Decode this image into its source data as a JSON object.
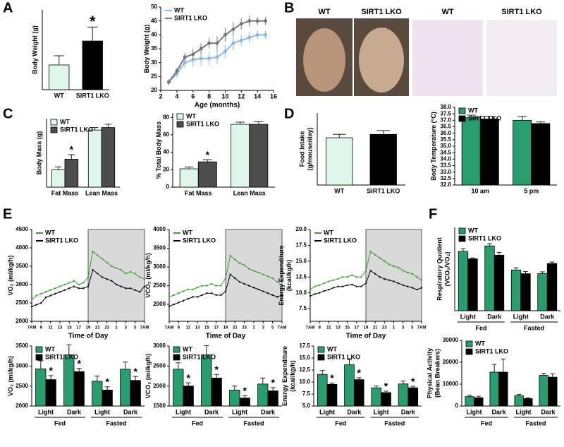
{
  "figure": {
    "panels": [
      "A",
      "B",
      "C",
      "D",
      "E",
      "F"
    ],
    "photo_labels": [
      "WT",
      "SIRT1 LKO",
      "WT",
      "SIRT1 LKO"
    ]
  },
  "chart_data": [
    {
      "type": "bar",
      "ylabel": "Body Weight (g)",
      "categories": [
        "WT",
        "SIRT1 LKO"
      ],
      "values": [
        31.2,
        37.2
      ],
      "errors": [
        2.3,
        3.5
      ],
      "colors": [
        "#dff7ea",
        "#000000"
      ],
      "annotations": [
        null,
        "*"
      ],
      "ylim": [
        25,
        45
      ]
    },
    {
      "type": "line",
      "ylabel": "Body Weight (g)",
      "xlabel": "Age (months)",
      "x": [
        3,
        4,
        5,
        6,
        7,
        8,
        9,
        10,
        11,
        12,
        13,
        14,
        15
      ],
      "series": [
        {
          "name": "WT",
          "color": "#8ab8e8",
          "values": [
            23,
            26,
            30,
            31,
            31.5,
            31.5,
            32,
            34,
            37,
            38,
            39,
            40,
            40
          ],
          "errors": [
            1,
            1.5,
            2,
            2.5,
            2.5,
            2.5,
            2.5,
            2.5,
            2.5,
            2,
            2,
            1.5,
            1.5
          ]
        },
        {
          "name": "SIRT1 LKO",
          "color": "#777777",
          "values": [
            23,
            27,
            32,
            33,
            35,
            37,
            37,
            40,
            42,
            44,
            45,
            45,
            45
          ],
          "errors": [
            1,
            1,
            1.5,
            2,
            2,
            2,
            2.5,
            2.5,
            2.5,
            2,
            2,
            1.5,
            1.5
          ]
        }
      ],
      "xlim": [
        2,
        16
      ],
      "xticks": [
        2,
        4,
        6,
        8,
        10,
        12,
        14,
        16
      ],
      "ylim": [
        20,
        50
      ],
      "yticks": [
        20,
        25,
        30,
        35,
        40,
        45,
        50
      ],
      "legend": "upper left"
    },
    {
      "type": "bar",
      "ylabel": "Body Mass (g)",
      "categories": [
        "Fat Mass",
        "Lean Mass"
      ],
      "series": [
        {
          "name": "WT",
          "color": "#dff7ea",
          "values": [
            6.8,
            22.5
          ],
          "errors": [
            1.2,
            1
          ]
        },
        {
          "name": "SIRT1 LKO",
          "color": "#4d4d4d",
          "values": [
            11,
            23.5
          ],
          "errors": [
            1.8,
            1.3
          ],
          "annotations": [
            "*",
            null
          ]
        }
      ],
      "ylim": [
        0,
        27
      ],
      "legend": "upper left"
    },
    {
      "type": "bar",
      "ylabel": "% Total Body Mass",
      "categories": [
        "Fat Mass",
        "Lean Mass"
      ],
      "series": [
        {
          "name": "WT",
          "color": "#dff7ea",
          "values": [
            21,
            72
          ],
          "errors": [
            2,
            2.5
          ]
        },
        {
          "name": "SIRT1 LKO",
          "color": "#4d4d4d",
          "values": [
            29,
            72
          ],
          "errors": [
            2.5,
            3
          ],
          "annotations": [
            "*",
            null
          ]
        }
      ],
      "ylim": [
        0,
        85
      ],
      "yticks": [
        0,
        20,
        40,
        60,
        80
      ],
      "legend": "upper left"
    },
    {
      "type": "bar",
      "ylabel": [
        "Food Intake",
        "(g/mouse/day)"
      ],
      "categories": [
        "WT",
        "SIRT1 LKO"
      ],
      "values": [
        2.1,
        2.25
      ],
      "errors": [
        0.15,
        0.17
      ],
      "colors": [
        "#dff7ea",
        "#000000"
      ],
      "ylim": [
        0,
        3.2
      ]
    },
    {
      "type": "bar",
      "ylabel": "Body Temperature (°C)",
      "categories": [
        "10 am",
        "5 pm"
      ],
      "series": [
        {
          "name": "WT",
          "color": "#2a9d6f",
          "values": [
            37.2,
            37.0
          ],
          "errors": [
            0.2,
            0.3
          ]
        },
        {
          "name": "SIRT1 LKO",
          "color": "#000000",
          "values": [
            37.1,
            36.75
          ],
          "errors": [
            0.2,
            0.12
          ]
        }
      ],
      "ylim": [
        32,
        38
      ],
      "yticks": [
        {
          "value": 32,
          "label": "32.0"
        },
        32.5,
        {
          "value": 33,
          "label": "33.0"
        },
        33.5,
        {
          "value": 34,
          "label": "34.0"
        },
        34.5,
        {
          "value": 35,
          "label": "35.0"
        },
        35.5,
        {
          "value": 36,
          "label": "36.0"
        },
        36.5,
        {
          "value": 37,
          "label": "37.0"
        },
        37.5,
        {
          "value": 38,
          "label": "38.0"
        }
      ],
      "legend": "upper left"
    },
    {
      "type": "line",
      "ylabel": "VO₂ (ml/kg/h)",
      "xlabel": "Time of Day",
      "x": [
        0,
        1,
        2,
        3,
        4,
        5,
        6,
        7,
        8,
        9,
        10,
        11,
        12,
        13,
        14,
        15,
        16,
        17,
        18,
        19,
        20,
        21,
        22,
        23,
        24
      ],
      "series": [
        {
          "name": "WT",
          "color": "#3d9e2e",
          "values": [
            2600,
            2700,
            2750,
            2800,
            2850,
            2900,
            2950,
            3000,
            3050,
            3100,
            3000,
            3050,
            3200,
            3900,
            3800,
            3700,
            3600,
            3500,
            3450,
            3400,
            3300,
            3350,
            3300,
            3200,
            3150
          ]
        },
        {
          "name": "SIRT1 LKO",
          "color": "#000000",
          "values": [
            2400,
            2450,
            2500,
            2650,
            2700,
            2750,
            2800,
            2850,
            2900,
            2950,
            2900,
            2900,
            2950,
            3400,
            3300,
            3200,
            3150,
            3100,
            3000,
            2950,
            2900,
            2900,
            2850,
            2800,
            2950
          ]
        }
      ],
      "xlim": [
        0,
        24
      ],
      "xticks": [
        {
          "value": 0,
          "label": "7AM"
        },
        {
          "value": 2,
          "label": "9"
        },
        {
          "value": 4,
          "label": "11"
        },
        {
          "value": 6,
          "label": "13"
        },
        {
          "value": 8,
          "label": "15"
        },
        {
          "value": 10,
          "label": "17"
        },
        {
          "value": 12,
          "label": "19"
        },
        {
          "value": 14,
          "label": "21"
        },
        {
          "value": 16,
          "label": "23"
        },
        {
          "value": 18,
          "label": "1"
        },
        {
          "value": 20,
          "label": "3"
        },
        {
          "value": 22,
          "label": "5"
        },
        {
          "value": 24,
          "label": "7AM"
        }
      ],
      "ylim": [
        2000,
        4500
      ],
      "yticks": [
        2000,
        2500,
        3000,
        3500,
        4000,
        4500
      ],
      "shade": [
        12,
        24
      ],
      "legend": "upper left"
    },
    {
      "type": "line",
      "ylabel": "VCO₂ (ml/kg/h)",
      "xlabel": "Time of Day",
      "x": [
        0,
        1,
        2,
        3,
        4,
        5,
        6,
        7,
        8,
        9,
        10,
        11,
        12,
        13,
        14,
        15,
        16,
        17,
        18,
        19,
        20,
        21,
        22,
        23,
        24
      ],
      "series": [
        {
          "name": "WT",
          "color": "#3d9e2e",
          "values": [
            2200,
            2250,
            2300,
            2350,
            2400,
            2400,
            2450,
            2500,
            2500,
            2550,
            2500,
            2500,
            2700,
            3300,
            3200,
            3100,
            3050,
            2950,
            2900,
            2850,
            2800,
            2750,
            2700,
            2600,
            2500
          ]
        },
        {
          "name": "SIRT1 LKO",
          "color": "#000000",
          "values": [
            1950,
            2000,
            2050,
            2100,
            2150,
            2200,
            2200,
            2250,
            2300,
            2300,
            2250,
            2250,
            2350,
            2800,
            2700,
            2600,
            2550,
            2500,
            2450,
            2400,
            2350,
            2300,
            2250,
            2200,
            2250
          ]
        }
      ],
      "xlim": [
        0,
        24
      ],
      "xticks": [
        {
          "value": 0,
          "label": "7AM"
        },
        {
          "value": 2,
          "label": "9"
        },
        {
          "value": 4,
          "label": "11"
        },
        {
          "value": 6,
          "label": "13"
        },
        {
          "value": 8,
          "label": "15"
        },
        {
          "value": 10,
          "label": "17"
        },
        {
          "value": 12,
          "label": "19"
        },
        {
          "value": 14,
          "label": "21"
        },
        {
          "value": 16,
          "label": "23"
        },
        {
          "value": 18,
          "label": "1"
        },
        {
          "value": 20,
          "label": "3"
        },
        {
          "value": 22,
          "label": "5"
        },
        {
          "value": 24,
          "label": "7AM"
        }
      ],
      "ylim": [
        1550,
        4000
      ],
      "yticks": [
        2000,
        2500,
        3000,
        3500,
        4000
      ],
      "shade": [
        12,
        24
      ],
      "legend": "upper left"
    },
    {
      "type": "line",
      "ylabel": [
        "Energy Expenditure",
        "(kcal/kg/h)"
      ],
      "xlabel": "Time of Day",
      "x": [
        0,
        1,
        2,
        3,
        4,
        5,
        6,
        7,
        8,
        9,
        10,
        11,
        12,
        13,
        14,
        15,
        16,
        17,
        18,
        19,
        20,
        21,
        22,
        23,
        24
      ],
      "series": [
        {
          "name": "WT",
          "color": "#3d9e2e",
          "values": [
            10.5,
            11,
            11.2,
            11.5,
            11.8,
            12,
            12.2,
            12.5,
            12.5,
            12.8,
            12.5,
            12.5,
            13.5,
            16.5,
            16,
            15.5,
            15,
            14.5,
            14.2,
            14,
            13.5,
            13.2,
            13,
            12.5,
            12
          ]
        },
        {
          "name": "SIRT1 LKO",
          "color": "#000000",
          "values": [
            9.5,
            9.8,
            10,
            10.3,
            10.5,
            10.8,
            11,
            11,
            11.2,
            11.3,
            11,
            11,
            11.5,
            13.5,
            13,
            12.5,
            12.2,
            12,
            11.8,
            11.5,
            11.2,
            11,
            10.8,
            10.5,
            10.8
          ]
        }
      ],
      "xlim": [
        0,
        24
      ],
      "xticks": [
        {
          "value": 0,
          "label": "7AM"
        },
        {
          "value": 2,
          "label": "9"
        },
        {
          "value": 4,
          "label": "11"
        },
        {
          "value": 6,
          "label": "13"
        },
        {
          "value": 8,
          "label": "15"
        },
        {
          "value": 10,
          "label": "17"
        },
        {
          "value": 12,
          "label": "19"
        },
        {
          "value": 14,
          "label": "21"
        },
        {
          "value": 16,
          "label": "23"
        },
        {
          "value": 18,
          "label": "1"
        },
        {
          "value": 20,
          "label": "3"
        },
        {
          "value": 22,
          "label": "5"
        },
        {
          "value": 24,
          "label": "7AM"
        }
      ],
      "ylim": [
        5.5,
        20
      ],
      "yticks": [
        7.5,
        {
          "value": 10,
          "label": "10.0"
        },
        12.5,
        {
          "value": 15,
          "label": "15.0"
        },
        17.5,
        {
          "value": 20,
          "label": "20.0"
        }
      ],
      "shade": [
        12,
        24
      ],
      "legend": "upper left"
    },
    {
      "type": "bar",
      "ylabel": "VO₂ (ml/kg/h)",
      "categories": [
        "Light",
        "Dark",
        "Light",
        "Dark"
      ],
      "groups": [
        "Fed",
        "Fasted"
      ],
      "series": [
        {
          "name": "WT",
          "color": "#2a9d6f",
          "values": [
            2930,
            3280,
            2620,
            2920
          ],
          "errors": [
            200,
            250,
            130,
            180
          ]
        },
        {
          "name": "SIRT1 LKO",
          "color": "#000000",
          "values": [
            2660,
            2860,
            2400,
            2640
          ],
          "errors": [
            100,
            80,
            80,
            100
          ],
          "annotations": [
            "*",
            "*",
            "*",
            "*"
          ]
        }
      ],
      "ylim": [
        2000,
        3500
      ],
      "yticks": [
        2000,
        2500,
        3000,
        3500
      ],
      "legend": "upper left"
    },
    {
      "type": "bar",
      "ylabel": "VCO₂ (ml/kg/h)",
      "categories": [
        "Light",
        "Dark",
        "Light",
        "Dark"
      ],
      "groups": [
        "Fed",
        "Fasted"
      ],
      "series": [
        {
          "name": "WT",
          "color": "#2a9d6f",
          "values": [
            2420,
            2780,
            1900,
            2050
          ],
          "errors": [
            160,
            230,
            100,
            150
          ]
        },
        {
          "name": "SIRT1 LKO",
          "color": "#000000",
          "values": [
            2000,
            2200,
            1700,
            1880
          ],
          "errors": [
            80,
            90,
            60,
            80
          ],
          "annotations": [
            "*",
            "*",
            "*",
            "*"
          ]
        }
      ],
      "ylim": [
        1500,
        3000
      ],
      "yticks": [
        1500,
        2000,
        2500,
        3000
      ],
      "legend": "upper left"
    },
    {
      "type": "bar",
      "ylabel": [
        "Energy Expenditure",
        "(kcal/kg/h)"
      ],
      "categories": [
        "Light",
        "Dark",
        "Light",
        "Dark"
      ],
      "groups": [
        "Fed",
        "Fasted"
      ],
      "series": [
        {
          "name": "WT",
          "color": "#2a9d6f",
          "values": [
            11.6,
            13.6,
            8.8,
            9.6
          ],
          "errors": [
            0.8,
            1.1,
            0.4,
            0.6
          ]
        },
        {
          "name": "SIRT1 LKO",
          "color": "#000000",
          "values": [
            9.5,
            10.5,
            7.8,
            8.8
          ],
          "errors": [
            0.3,
            0.4,
            0.3,
            0.3
          ],
          "annotations": [
            "*",
            "*",
            "*",
            "*"
          ]
        }
      ],
      "ylim": [
        5,
        17.5
      ],
      "yticks": [
        {
          "value": 5,
          "label": "5.0"
        },
        7.5,
        {
          "value": 10,
          "label": "10.0"
        },
        12.5,
        {
          "value": 15,
          "label": "15.0"
        },
        17.5
      ],
      "legend": "upper left"
    },
    {
      "type": "bar",
      "ylabel": [
        "Respiratory Quotient",
        "(VCO₂/VO₂)"
      ],
      "categories": [
        "Light",
        "Dark",
        "Light",
        "Dark"
      ],
      "groups": [
        "Fed",
        "Fasted"
      ],
      "series": [
        {
          "name": "WT",
          "color": "#2a9d6f",
          "values": [
            0.82,
            0.85,
            0.72,
            0.7
          ],
          "errors": [
            0.015,
            0.012,
            0.012,
            0.01
          ]
        },
        {
          "name": "SIRT1 LKO",
          "color": "#000000",
          "values": [
            0.78,
            0.8,
            0.7,
            0.755
          ],
          "errors": [
            0.005,
            0.015,
            0.012,
            0.008
          ]
        }
      ],
      "ylim": [
        0.5,
        0.95
      ],
      "legend": "upper left"
    },
    {
      "type": "bar",
      "ylabel": [
        "Physical Activity",
        "(Bean Breakers)"
      ],
      "categories": [
        "Light",
        "Dark",
        "Light",
        "Dark"
      ],
      "groups": [
        "Fed",
        "Fasted"
      ],
      "series": [
        {
          "name": "WT",
          "color": "#2a9d6f",
          "values": [
            4300,
            15500,
            4700,
            14000
          ],
          "errors": [
            700,
            3500,
            600,
            1000
          ]
        },
        {
          "name": "SIRT1 LKO",
          "color": "#000000",
          "values": [
            3800,
            15500,
            3400,
            13200
          ],
          "errors": [
            700,
            6000,
            300,
            1500
          ]
        }
      ],
      "ylim": [
        0,
        30000
      ],
      "yticks": [
        0,
        10000,
        20000,
        30000
      ],
      "legend": "upper left"
    }
  ]
}
